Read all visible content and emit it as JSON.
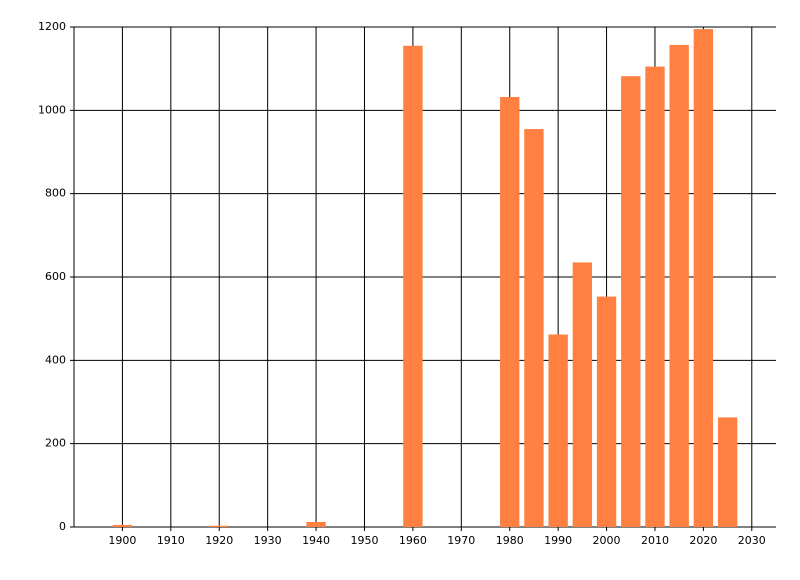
{
  "chart_data": {
    "type": "bar",
    "x": [
      1900,
      1920,
      1940,
      1960,
      1980,
      1985,
      1990,
      1995,
      2000,
      2005,
      2010,
      2015,
      2020,
      2025
    ],
    "values": [
      5,
      3,
      12,
      1155,
      1032,
      955,
      462,
      635,
      553,
      1082,
      1105,
      1157,
      1195,
      263
    ],
    "color": "#ff8040",
    "bar_width": 4,
    "xlim": [
      1890,
      2035
    ],
    "xticks": [
      1900,
      1910,
      1920,
      1930,
      1940,
      1950,
      1960,
      1970,
      1980,
      1990,
      2000,
      2010,
      2020,
      2030
    ],
    "ylim": [
      0,
      1200
    ],
    "yticks": [
      0,
      200,
      400,
      600,
      800,
      1000,
      1200
    ],
    "grid": true
  }
}
